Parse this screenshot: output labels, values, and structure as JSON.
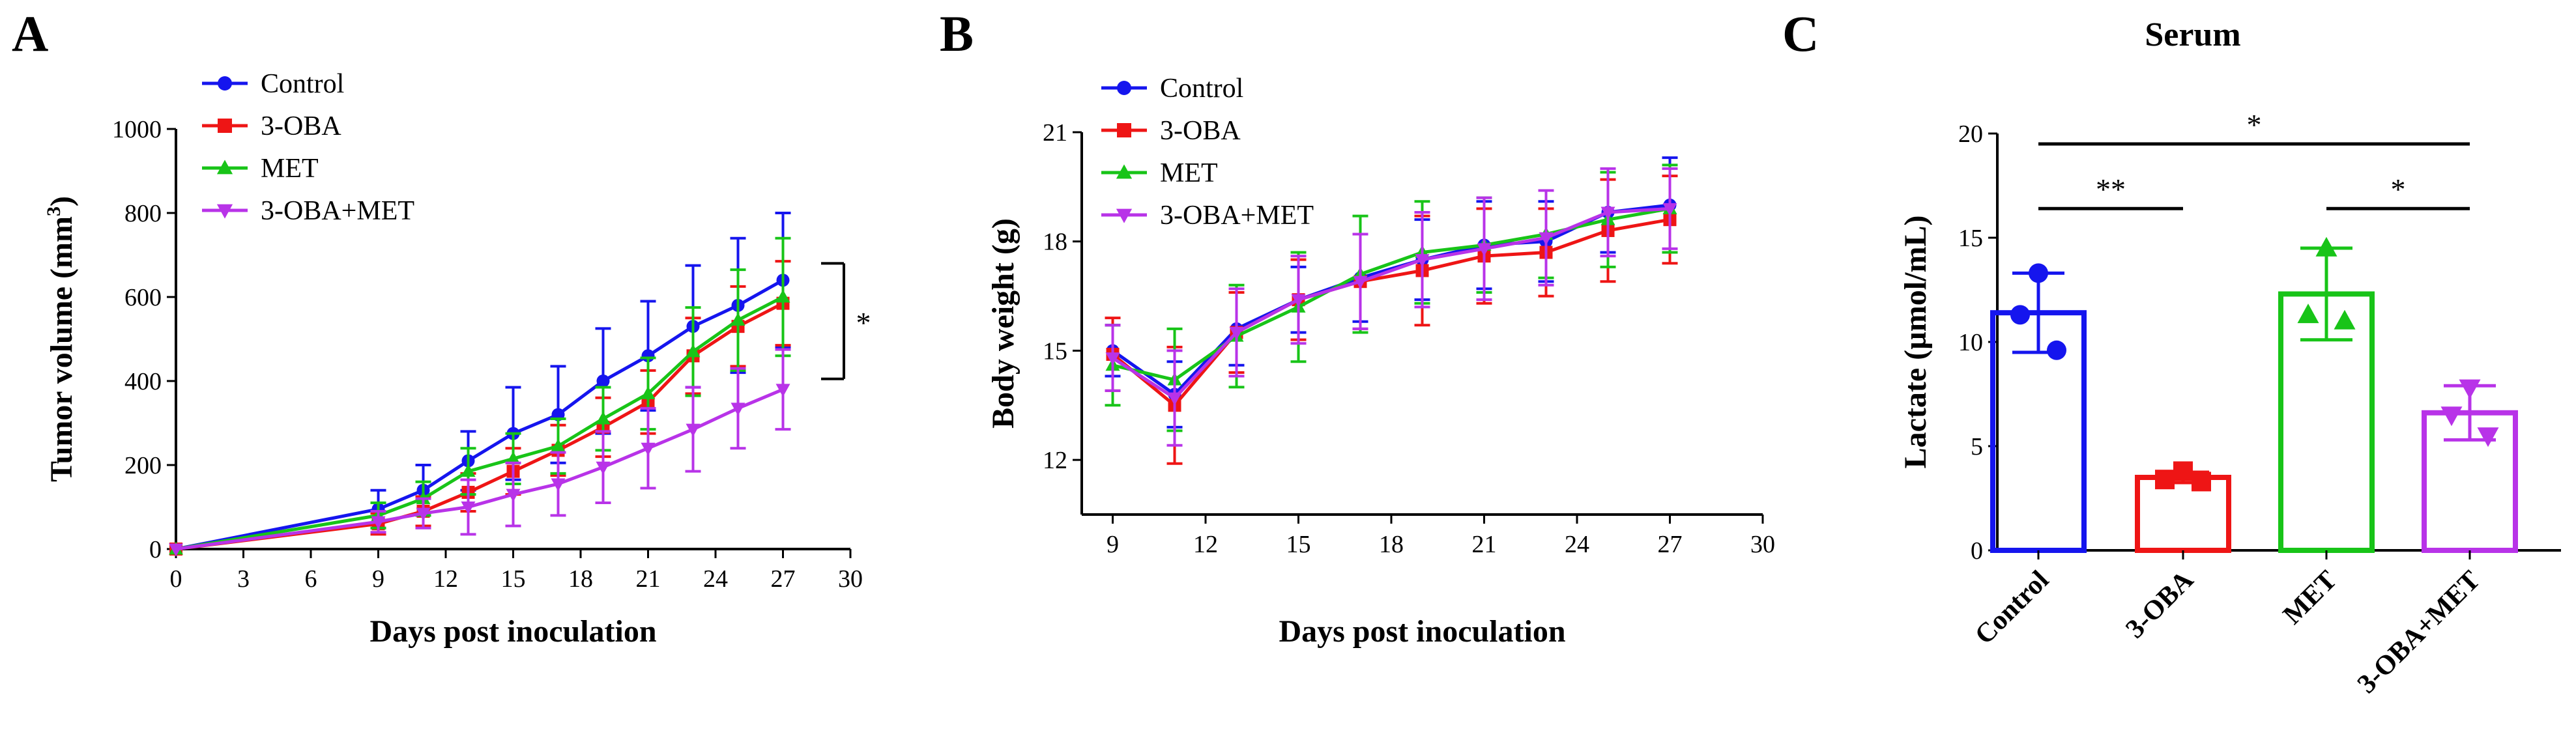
{
  "colors": {
    "control": "#1515ee",
    "oba": "#ee1515",
    "met": "#18c418",
    "combo": "#b833e8",
    "axis": "#000000"
  },
  "chart_data": [
    {
      "panel": "A",
      "type": "line",
      "title": "",
      "xlabel": "Days post  inoculation",
      "ylabel_main": "Tumor volume (mm",
      "ylabel_sup": "3",
      "ylabel_tail": ")",
      "xlim": [
        0,
        30
      ],
      "ylim": [
        0,
        1000
      ],
      "xticks": [
        0,
        3,
        6,
        9,
        12,
        15,
        18,
        21,
        24,
        27,
        30
      ],
      "yticks": [
        0,
        200,
        400,
        600,
        800,
        1000
      ],
      "x": [
        0,
        9,
        11,
        13,
        15,
        17,
        19,
        21,
        23,
        25,
        27
      ],
      "legend": [
        "Control",
        "3-OBA",
        "MET",
        "3-OBA+MET"
      ],
      "significance": "*",
      "series": [
        {
          "name": "Control",
          "color_key": "control",
          "marker": "circle",
          "values": [
            0,
            95,
            140,
            210,
            275,
            320,
            400,
            460,
            530,
            580,
            640
          ],
          "errors": [
            0,
            45,
            60,
            70,
            110,
            115,
            125,
            130,
            145,
            160,
            160
          ]
        },
        {
          "name": "3-OBA",
          "color_key": "oba",
          "marker": "square",
          "values": [
            0,
            60,
            90,
            135,
            185,
            235,
            290,
            350,
            460,
            530,
            585
          ],
          "errors": [
            0,
            25,
            35,
            45,
            55,
            60,
            70,
            75,
            90,
            95,
            100
          ]
        },
        {
          "name": "MET",
          "color_key": "met",
          "marker": "triangle",
          "values": [
            0,
            80,
            120,
            185,
            215,
            245,
            310,
            370,
            470,
            545,
            600
          ],
          "errors": [
            0,
            30,
            40,
            55,
            60,
            65,
            75,
            85,
            105,
            120,
            140
          ]
        },
        {
          "name": "3-OBA+MET",
          "color_key": "combo",
          "marker": "triangle-down",
          "values": [
            0,
            65,
            85,
            100,
            130,
            155,
            195,
            240,
            285,
            335,
            380
          ],
          "errors": [
            0,
            25,
            35,
            65,
            75,
            75,
            85,
            95,
            100,
            95,
            95
          ]
        }
      ]
    },
    {
      "panel": "B",
      "type": "line",
      "title": "",
      "xlabel": "Days post inoculation",
      "ylabel": "Body weight (g)",
      "xlim": [
        8,
        30
      ],
      "ylim": [
        10.5,
        21
      ],
      "xticks": [
        9,
        12,
        15,
        18,
        21,
        24,
        27,
        30
      ],
      "yticks": [
        12,
        15,
        18,
        21
      ],
      "x": [
        9,
        11,
        13,
        15,
        17,
        19,
        21,
        23,
        25,
        27
      ],
      "legend": [
        "Control",
        "3-OBA",
        "MET",
        "3-OBA+MET"
      ],
      "series": [
        {
          "name": "Control",
          "color_key": "control",
          "marker": "circle",
          "values": [
            15.0,
            13.8,
            15.6,
            16.4,
            17.0,
            17.5,
            17.9,
            18.0,
            18.8,
            19.0
          ],
          "errors": [
            0.7,
            0.9,
            1.0,
            0.9,
            1.2,
            1.1,
            1.2,
            1.1,
            1.1,
            1.3
          ]
        },
        {
          "name": "3-OBA",
          "color_key": "oba",
          "marker": "square",
          "values": [
            14.9,
            13.5,
            15.5,
            16.4,
            16.9,
            17.2,
            17.6,
            17.7,
            18.3,
            18.6
          ],
          "errors": [
            1.0,
            1.6,
            1.1,
            1.1,
            1.3,
            1.5,
            1.3,
            1.2,
            1.4,
            1.2
          ]
        },
        {
          "name": "MET",
          "color_key": "met",
          "marker": "triangle",
          "values": [
            14.6,
            14.2,
            15.4,
            16.2,
            17.1,
            17.7,
            17.9,
            18.2,
            18.6,
            18.9
          ],
          "errors": [
            1.1,
            1.4,
            1.4,
            1.5,
            1.6,
            1.4,
            1.3,
            1.2,
            1.3,
            1.2
          ]
        },
        {
          "name": "3-OBA+MET",
          "color_key": "combo",
          "marker": "triangle-down",
          "values": [
            14.8,
            13.7,
            15.5,
            16.4,
            16.9,
            17.5,
            17.8,
            18.1,
            18.8,
            18.9
          ],
          "errors": [
            0.9,
            1.3,
            1.2,
            1.2,
            1.3,
            1.3,
            1.4,
            1.3,
            1.2,
            1.1
          ]
        }
      ]
    },
    {
      "panel": "C",
      "type": "bar",
      "title": "Serum",
      "xlabel": "",
      "ylabel": "Lactate (µmol/mL)",
      "ylim": [
        0,
        20
      ],
      "yticks": [
        0,
        5,
        10,
        15,
        20
      ],
      "categories": [
        "Control",
        "3-OBA",
        "MET",
        "3-OBA+MET"
      ],
      "values": [
        11.4,
        3.5,
        12.3,
        6.6
      ],
      "errors": [
        1.9,
        0.25,
        2.2,
        1.3
      ],
      "points": [
        [
          13.3,
          11.3,
          9.6
        ],
        [
          3.8,
          3.4,
          3.3
        ],
        [
          14.5,
          11.3,
          11.0
        ],
        [
          7.8,
          6.5,
          5.5
        ]
      ],
      "color_keys": [
        "control",
        "oba",
        "met",
        "combo"
      ],
      "point_markers": [
        "circle",
        "square",
        "triangle",
        "triangle-down"
      ],
      "significance": [
        {
          "from": 0,
          "to": 3,
          "label": "*"
        },
        {
          "from": 0,
          "to": 1,
          "label": "**"
        },
        {
          "from": 2,
          "to": 3,
          "label": "*"
        }
      ]
    }
  ]
}
